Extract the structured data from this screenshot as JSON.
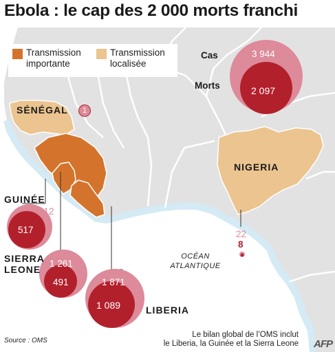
{
  "title": "Ebola : le cap des 2 000 morts franchi",
  "legend": {
    "items": [
      {
        "label_line1": "Transmission",
        "label_line2": "importante",
        "color": "#d4742c"
      },
      {
        "label_line1": "Transmission",
        "label_line2": "localisée",
        "color": "#ebc48f"
      }
    ]
  },
  "total": {
    "cases_label": "Cas",
    "cases": "3 944",
    "deaths_label": "Morts",
    "deaths": "2 097"
  },
  "countries": {
    "senegal": {
      "name": "SÉNÉGAL",
      "cases": "1"
    },
    "nigeria": {
      "name": "NIGERIA",
      "cases": "22",
      "deaths": "8"
    },
    "guinee": {
      "name": "GUINÉE",
      "cases": "812",
      "deaths": "517"
    },
    "sierra_leone": {
      "name_line1": "SIERRA",
      "name_line2": "LEONE",
      "cases": "1 261",
      "deaths": "491"
    },
    "liberia": {
      "name": "LIBERIA",
      "cases": "1 871",
      "deaths": "1 089"
    }
  },
  "ocean": {
    "line1": "OCÉAN",
    "line2": "ATLANTIQUE"
  },
  "footnote": {
    "line1": "Le bilan global de l’OMS inclut",
    "line2": "le Liberia, la Guinée et la Sierra Leone"
  },
  "source": "Source : OMS",
  "logo": "AFP",
  "colors": {
    "land": "#e2e2e2",
    "sea_light": "#d4eaf4",
    "sea": "#ffffff",
    "border": "#ffffff",
    "important": "#d4742c",
    "localized": "#ebc48f",
    "cases_circle": "#dd8a9a",
    "deaths_circle": "#b2202c"
  }
}
